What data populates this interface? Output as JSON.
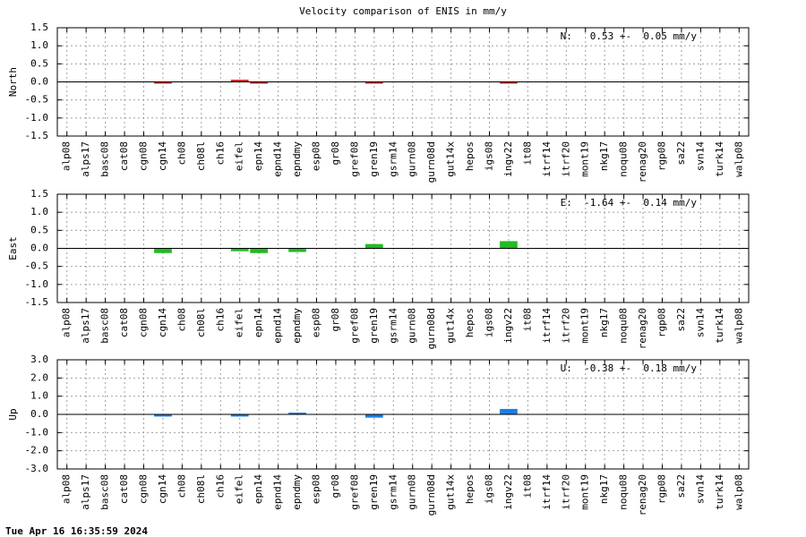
{
  "title": "Velocity comparison of ENIS in mm/y",
  "footer": "Tue Apr 16 16:35:59 2024",
  "chart_data": [
    {
      "type": "bar",
      "ylabel": "North",
      "annotation": "N:   0.53 +-  0.05 mm/y",
      "color": "#cc2222",
      "ylim": [
        -1.5,
        1.5
      ],
      "yticks": [
        -1.5,
        -1.0,
        -0.5,
        0.0,
        0.5,
        1.0,
        1.5
      ],
      "ytick_labels": [
        "-1.5",
        "-1.0",
        "-0.5",
        "0.0",
        "0.5",
        "1.0",
        "1.5"
      ],
      "grid": true,
      "categories": [
        "alp08",
        "alps17",
        "basc08",
        "cat08",
        "cgn08",
        "cgn14",
        "ch08",
        "ch08l",
        "ch16",
        "eifel",
        "epn14",
        "epnd14",
        "epndmy",
        "esp08",
        "gr08",
        "gref08",
        "gren19",
        "gsrm14",
        "gurn08",
        "gurn08d",
        "gut14x",
        "hepos",
        "igs08",
        "ingv22",
        "it08",
        "itrf14",
        "itrf20",
        "mont19",
        "nkg17",
        "noqu08",
        "renag20",
        "rgp08",
        "sa22",
        "svn14",
        "turk14",
        "walp08"
      ],
      "values": [
        0,
        0,
        0,
        0,
        0,
        -0.02,
        0,
        0,
        0,
        0.06,
        -0.05,
        0,
        0,
        0,
        0,
        0,
        -0.02,
        0,
        0,
        0,
        0,
        0,
        0,
        -0.03,
        0,
        0,
        0,
        0,
        0,
        0,
        0,
        0,
        0,
        0,
        0,
        0
      ]
    },
    {
      "type": "bar",
      "ylabel": "East",
      "annotation": "E:  -1.64 +-  0.14 mm/y",
      "color": "#22bb22",
      "ylim": [
        -1.5,
        1.5
      ],
      "yticks": [
        -1.5,
        -1.0,
        -0.5,
        0.0,
        0.5,
        1.0,
        1.5
      ],
      "ytick_labels": [
        "-1.5",
        "-1.0",
        "-0.5",
        "0.0",
        "0.5",
        "1.0",
        "1.5"
      ],
      "grid": true,
      "categories": [
        "alp08",
        "alps17",
        "basc08",
        "cat08",
        "cgn08",
        "cgn14",
        "ch08",
        "ch08l",
        "ch16",
        "eifel",
        "epn14",
        "epnd14",
        "epndmy",
        "esp08",
        "gr08",
        "gref08",
        "gren19",
        "gsrm14",
        "gurn08",
        "gurn08d",
        "gut14x",
        "hepos",
        "igs08",
        "ingv22",
        "it08",
        "itrf14",
        "itrf20",
        "mont19",
        "nkg17",
        "noqu08",
        "renag20",
        "rgp08",
        "sa22",
        "svn14",
        "turk14",
        "walp08"
      ],
      "values": [
        0,
        0,
        0,
        0,
        0,
        -0.13,
        0,
        0,
        0,
        -0.08,
        -0.13,
        0,
        -0.1,
        0,
        0,
        0,
        0.12,
        0,
        0,
        0,
        0,
        0,
        0,
        0.2,
        0,
        0,
        0,
        0,
        0,
        0,
        0,
        0,
        0,
        0,
        0,
        0
      ]
    },
    {
      "type": "bar",
      "ylabel": "Up",
      "annotation": "U:  -0.38 +-  0.18 mm/y",
      "color": "#1a7ee6",
      "ylim": [
        -3.0,
        3.0
      ],
      "yticks": [
        -3.0,
        -2.0,
        -1.0,
        0.0,
        1.0,
        2.0,
        3.0
      ],
      "ytick_labels": [
        "-3.0",
        "-2.0",
        "-1.0",
        "0.0",
        "1.0",
        "2.0",
        "3.0"
      ],
      "grid": true,
      "categories": [
        "alp08",
        "alps17",
        "basc08",
        "cat08",
        "cgn08",
        "cgn14",
        "ch08",
        "ch08l",
        "ch16",
        "eifel",
        "epn14",
        "epnd14",
        "epndmy",
        "esp08",
        "gr08",
        "gref08",
        "gren19",
        "gsrm14",
        "gurn08",
        "gurn08d",
        "gut14x",
        "hepos",
        "igs08",
        "ingv22",
        "it08",
        "itrf14",
        "itrf20",
        "mont19",
        "nkg17",
        "noqu08",
        "renag20",
        "rgp08",
        "sa22",
        "svn14",
        "turk14",
        "walp08"
      ],
      "values": [
        0,
        0,
        0,
        0,
        0,
        -0.12,
        0,
        0,
        0,
        -0.12,
        0,
        0,
        0.05,
        0,
        0,
        0,
        -0.18,
        0,
        0,
        0,
        0,
        0,
        0,
        0.3,
        0,
        0,
        0,
        0,
        0,
        0,
        0,
        0,
        0,
        0,
        0,
        0
      ]
    }
  ]
}
